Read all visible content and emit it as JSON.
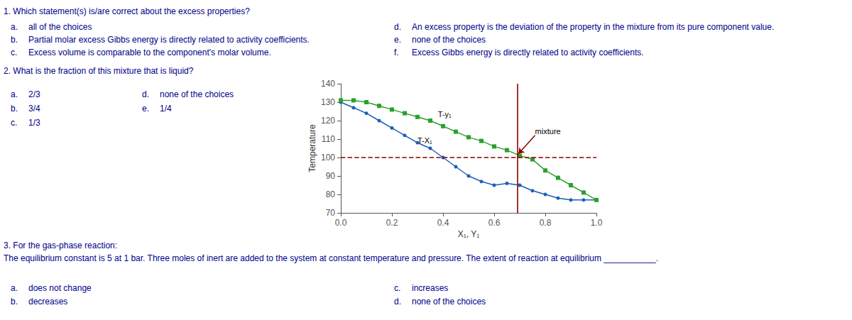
{
  "chart_data": {
    "type": "line",
    "background": "#ffffff",
    "text_color": "#00008b",
    "questions": [
      {
        "text": "1. Which statement(s) is/are correct about the excess properties?",
        "options": [
          [
            "a.",
            "all of the choices"
          ],
          [
            "b.",
            "Partial molar excess Gibbs energy is directly related to activity coefficients."
          ],
          [
            "c.",
            "Excess volume is comparable to the component's molar volume."
          ],
          [
            "d.",
            "An excess property is the deviation of the property in the mixture from its pure component value."
          ],
          [
            "e.",
            "none of the choices"
          ],
          [
            "f.",
            "Excess Gibbs energy is directly related to activity coefficients."
          ]
        ]
      },
      {
        "text": "2. What is the fraction of this mixture that is liquid?",
        "options": [
          [
            "a.",
            "2/3"
          ],
          [
            "b.",
            "3/4"
          ],
          [
            "c.",
            "1/3"
          ],
          [
            "d.",
            "none of the choices"
          ],
          [
            "e.",
            "1/4"
          ]
        ]
      },
      {
        "text": "3. For the gas-phase reaction:",
        "body": "The equilibrium constant is 5 at 1 bar. Three moles of inert are added to the system at constant temperature and pressure. The extent of reaction at equilibrium ___________.",
        "options": [
          [
            "a.",
            "does not change"
          ],
          [
            "b.",
            "decreases"
          ],
          [
            "c.",
            "increases"
          ],
          [
            "d.",
            "none of the choices"
          ]
        ]
      }
    ],
    "xlabel": "X₁, Y₁",
    "ylabel": "Temperature",
    "xlim": [
      0,
      1
    ],
    "ylim": [
      70,
      140
    ],
    "xticks": [
      {
        "value": 0,
        "label": "0.0"
      },
      0.2,
      0.4,
      0.6,
      0.8,
      {
        "value": 1,
        "label": "1.0"
      }
    ],
    "yticks": [
      70,
      80,
      90,
      100,
      110,
      120,
      130,
      140
    ],
    "grid": false,
    "series": [
      {
        "color": "#1a5eb8",
        "marker": "circle",
        "x": [
          0,
          0.05,
          0.1,
          0.15,
          0.2,
          0.25,
          0.3,
          0.35,
          0.4,
          0.45,
          0.5,
          0.55,
          0.6,
          0.65,
          0.7,
          0.75,
          0.8,
          0.85,
          0.9,
          0.95,
          1.0
        ],
        "values": [
          130,
          127,
          124,
          120,
          116,
          112,
          108,
          105,
          100,
          95,
          90,
          87,
          85,
          86,
          85,
          82,
          80,
          78,
          77,
          77,
          77
        ]
      },
      {
        "color": "#2ca02c",
        "marker": "square",
        "x": [
          0,
          0.05,
          0.1,
          0.15,
          0.2,
          0.25,
          0.3,
          0.35,
          0.4,
          0.45,
          0.5,
          0.55,
          0.6,
          0.65,
          0.7,
          0.75,
          0.8,
          0.85,
          0.9,
          0.95,
          1.0
        ],
        "values": [
          131,
          131,
          130,
          128,
          126,
          124,
          122,
          120,
          117,
          114,
          111,
          109,
          106,
          104,
          101,
          99,
          93,
          89,
          85,
          81,
          77
        ]
      }
    ],
    "reference_lines": [
      {
        "axis": "y",
        "value": 100,
        "color": "#8b0000",
        "line_style": "dashed"
      },
      {
        "axis": "x",
        "value": 0.69,
        "color": "#8b0000",
        "line_style": "solid"
      }
    ],
    "annotations": [
      {
        "text": "T-X₁",
        "x": 0.3,
        "y": 107
      },
      {
        "text": "T-y₁",
        "x": 0.38,
        "y": 121
      },
      {
        "text": "mixture",
        "x": 0.76,
        "y": 112,
        "arrow_to": [
          0.695,
          102
        ],
        "arrow_color": "#8b0000"
      }
    ]
  }
}
